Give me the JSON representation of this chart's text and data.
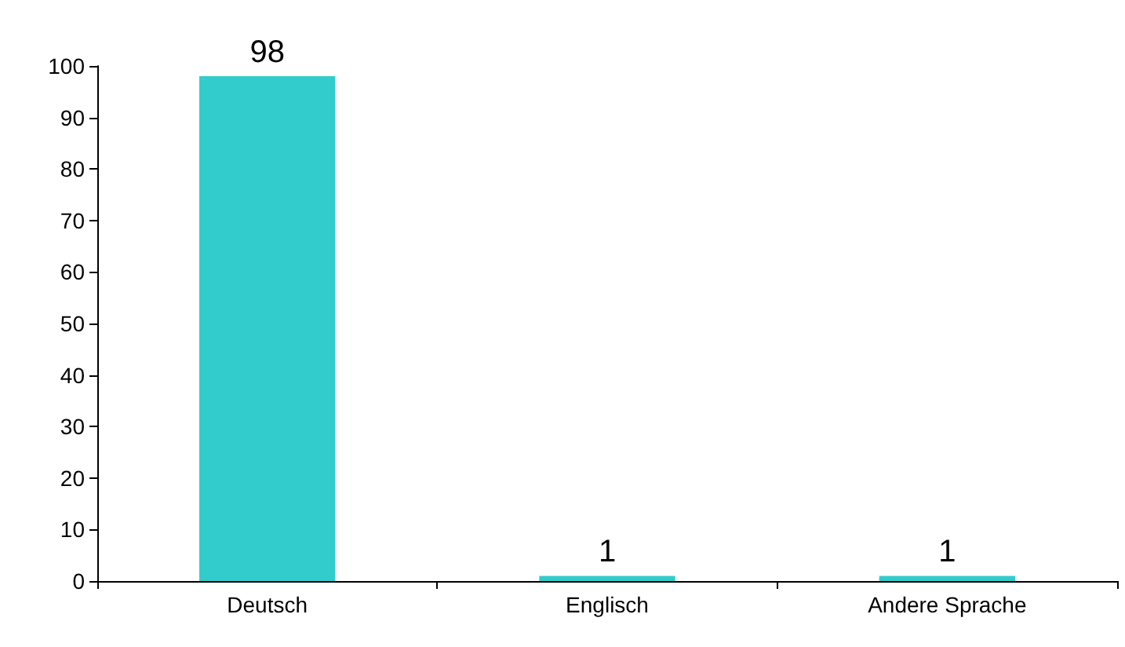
{
  "chart_data": {
    "type": "bar",
    "categories": [
      "Deutsch",
      "Englisch",
      "Andere Sprache"
    ],
    "values": [
      98,
      1,
      1
    ],
    "color": "#33cccc",
    "ylim": [
      0,
      100
    ],
    "yticks": [
      0,
      10,
      20,
      30,
      40,
      50,
      60,
      70,
      80,
      90,
      100
    ],
    "data_labels": true,
    "grid": false
  }
}
